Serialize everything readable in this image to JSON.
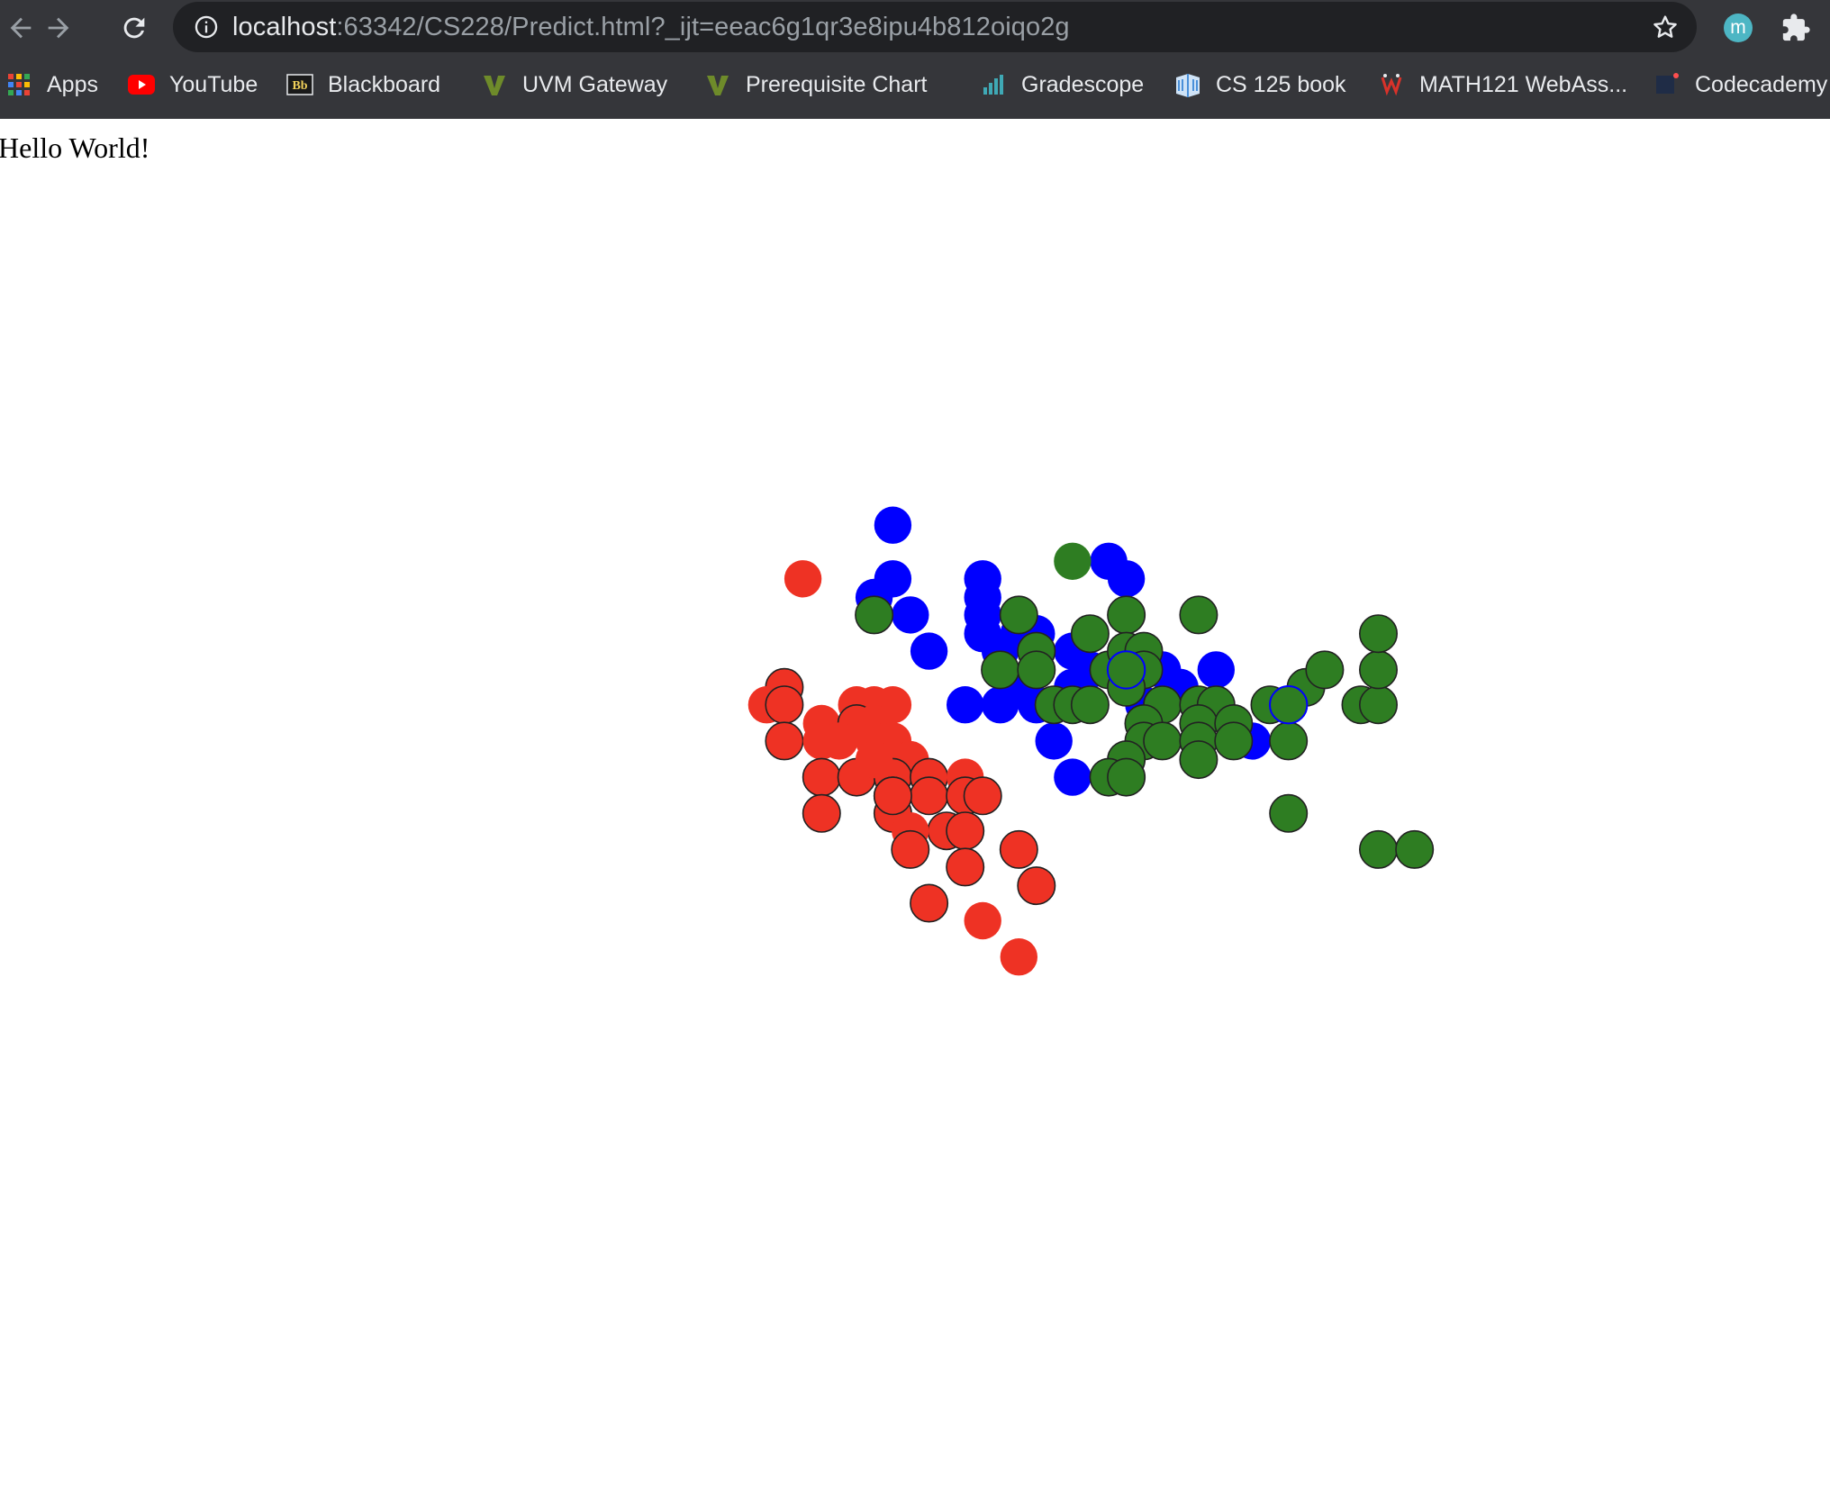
{
  "browser": {
    "url_host": "localhost",
    "url_path": ":63342/CS228/Predict.html?_ijt=eeac6g1qr3e8ipu4b812oiqo2g",
    "profile_initial": "m",
    "bookmarks": [
      {
        "label": "Apps",
        "icon": "apps-grid-icon"
      },
      {
        "label": "YouTube",
        "icon": "youtube-icon"
      },
      {
        "label": "Blackboard",
        "icon": "blackboard-icon"
      },
      {
        "label": "UVM Gateway",
        "icon": "uvm-icon"
      },
      {
        "label": "Prerequisite Chart",
        "icon": "uvm-icon"
      },
      {
        "label": "Gradescope",
        "icon": "gradescope-icon"
      },
      {
        "label": "CS 125 book",
        "icon": "book-icon"
      },
      {
        "label": "MATH121 WebAss...",
        "icon": "webassign-icon"
      },
      {
        "label": "Codecademy",
        "icon": "codecademy-icon"
      }
    ]
  },
  "page": {
    "text": "Hello World!"
  },
  "colors": {
    "red": "#ee3224",
    "blue": "#0000ff",
    "green": "#2e7d22",
    "chrome_bg": "#35363a",
    "omnibox_bg": "#202124"
  },
  "chart_data": {
    "type": "scatter",
    "title": "",
    "xlabel": "",
    "ylabel": "",
    "xlim": [
      0,
      1568
    ],
    "ylim": [
      0,
      1294
    ],
    "grid": false,
    "series": [
      {
        "color": "#ee3224",
        "points": [
          [
            688,
            496,
            0
          ],
          [
            672,
            589,
            1
          ],
          [
            657,
            604,
            0
          ],
          [
            672,
            604,
            1
          ],
          [
            704,
            620,
            0
          ],
          [
            734,
            604,
            0
          ],
          [
            749,
            604,
            0
          ],
          [
            765,
            604,
            0
          ],
          [
            734,
            620,
            1
          ],
          [
            749,
            620,
            0
          ],
          [
            672,
            635,
            1
          ],
          [
            704,
            635,
            0
          ],
          [
            719,
            635,
            0
          ],
          [
            749,
            635,
            0
          ],
          [
            765,
            635,
            0
          ],
          [
            780,
            651,
            0
          ],
          [
            765,
            651,
            0
          ],
          [
            704,
            666,
            1
          ],
          [
            734,
            666,
            1
          ],
          [
            765,
            666,
            1
          ],
          [
            796,
            666,
            1
          ],
          [
            827,
            666,
            0
          ],
          [
            765,
            682,
            1
          ],
          [
            796,
            682,
            1
          ],
          [
            827,
            682,
            1
          ],
          [
            842,
            682,
            1
          ],
          [
            704,
            697,
            1
          ],
          [
            765,
            697,
            1
          ],
          [
            811,
            712,
            1
          ],
          [
            827,
            712,
            1
          ],
          [
            780,
            712,
            0
          ],
          [
            780,
            728,
            1
          ],
          [
            873,
            728,
            1
          ],
          [
            827,
            743,
            1
          ],
          [
            888,
            759,
            1
          ],
          [
            796,
            774,
            1
          ],
          [
            842,
            789,
            0
          ],
          [
            873,
            820,
            0
          ],
          [
            765,
            682,
            1
          ],
          [
            749,
            651,
            0
          ]
        ]
      },
      {
        "color": "#0000ff",
        "points": [
          [
            765,
            450,
            0
          ],
          [
            765,
            496,
            0
          ],
          [
            749,
            512,
            0
          ],
          [
            780,
            527,
            0
          ],
          [
            796,
            558,
            0
          ],
          [
            842,
            496,
            0
          ],
          [
            842,
            512,
            0
          ],
          [
            842,
            527,
            0
          ],
          [
            842,
            543,
            0
          ],
          [
            857,
            558,
            0
          ],
          [
            873,
            543,
            0
          ],
          [
            888,
            543,
            0
          ],
          [
            950,
            481,
            0
          ],
          [
            965,
            496,
            0
          ],
          [
            919,
            558,
            0
          ],
          [
            934,
            574,
            0
          ],
          [
            919,
            589,
            0
          ],
          [
            934,
            604,
            0
          ],
          [
            888,
            604,
            0
          ],
          [
            873,
            589,
            0
          ],
          [
            857,
            604,
            0
          ],
          [
            827,
            604,
            0
          ],
          [
            903,
            635,
            0
          ],
          [
            919,
            666,
            0
          ],
          [
            1042,
            574,
            0
          ],
          [
            1011,
            589,
            0
          ],
          [
            996,
            574,
            0
          ],
          [
            1073,
            635,
            0
          ],
          [
            980,
            604,
            0
          ],
          [
            965,
            589,
            0
          ]
        ]
      },
      {
        "color": "#2e7d22",
        "points": [
          [
            919,
            481,
            0
          ],
          [
            749,
            527,
            1
          ],
          [
            873,
            527,
            1
          ],
          [
            934,
            543,
            1
          ],
          [
            965,
            527,
            1
          ],
          [
            1027,
            527,
            1
          ],
          [
            888,
            558,
            1
          ],
          [
            857,
            574,
            1
          ],
          [
            888,
            574,
            1
          ],
          [
            950,
            574,
            1
          ],
          [
            965,
            558,
            1
          ],
          [
            980,
            558,
            1
          ],
          [
            980,
            574,
            1
          ],
          [
            965,
            589,
            1
          ],
          [
            903,
            604,
            1
          ],
          [
            919,
            604,
            1
          ],
          [
            934,
            604,
            1
          ],
          [
            996,
            604,
            1
          ],
          [
            1027,
            604,
            1
          ],
          [
            1042,
            604,
            1
          ],
          [
            980,
            620,
            1
          ],
          [
            1027,
            620,
            1
          ],
          [
            1057,
            620,
            1
          ],
          [
            980,
            635,
            1
          ],
          [
            996,
            635,
            1
          ],
          [
            1027,
            635,
            1
          ],
          [
            1057,
            635,
            1
          ],
          [
            965,
            651,
            1
          ],
          [
            1027,
            651,
            1
          ],
          [
            950,
            666,
            1
          ],
          [
            965,
            666,
            1
          ],
          [
            1088,
            604,
            1
          ],
          [
            1119,
            589,
            1
          ],
          [
            1135,
            574,
            1
          ],
          [
            1104,
            604,
            1
          ],
          [
            1104,
            635,
            1
          ],
          [
            1166,
            604,
            1
          ],
          [
            1181,
            604,
            1
          ],
          [
            1181,
            574,
            1
          ],
          [
            1181,
            543,
            1
          ],
          [
            1104,
            697,
            1
          ],
          [
            1181,
            728,
            1
          ],
          [
            1212,
            728,
            1
          ]
        ]
      },
      {
        "color": "#2e7d22",
        "points": [
          [
            965,
            574,
            0
          ],
          [
            1104,
            604,
            0
          ]
        ],
        "note_ring": "#0000ff"
      }
    ]
  }
}
